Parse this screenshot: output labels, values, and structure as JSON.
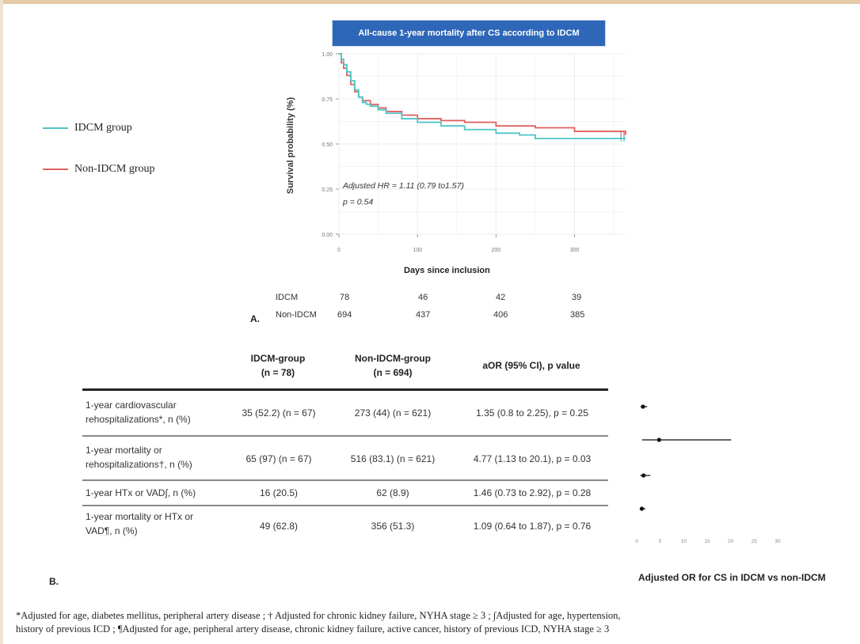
{
  "chart_data": [
    {
      "type": "line",
      "title": "All-cause 1-year mortality after CS according to IDCM",
      "xlabel": "Days since inclusion",
      "ylabel": "Survival probability (%)",
      "xlim": [
        0,
        365
      ],
      "ylim": [
        0,
        1
      ],
      "x_ticks": [
        "0",
        "100",
        "200",
        "300"
      ],
      "y_ticks": [
        "0.00",
        "0.25",
        "0.50",
        "0.75",
        "1.00"
      ],
      "grid": true,
      "annotation": {
        "hr": "Adjusted HR = 1.11 (0.79 to1.57)",
        "p": "p = 0.54"
      },
      "series": [
        {
          "name": "IDCM group",
          "color": "#4fc3c6",
          "x": [
            0,
            3,
            6,
            10,
            15,
            20,
            25,
            30,
            35,
            40,
            50,
            60,
            80,
            100,
            130,
            160,
            200,
            230,
            250,
            300,
            365
          ],
          "y": [
            1.0,
            0.97,
            0.94,
            0.9,
            0.85,
            0.8,
            0.76,
            0.73,
            0.72,
            0.71,
            0.69,
            0.67,
            0.64,
            0.62,
            0.6,
            0.58,
            0.56,
            0.55,
            0.53,
            0.53,
            0.53
          ]
        },
        {
          "name": "Non-IDCM group",
          "color": "#e06060",
          "x": [
            0,
            3,
            6,
            10,
            15,
            20,
            25,
            30,
            40,
            50,
            60,
            80,
            100,
            130,
            160,
            200,
            250,
            300,
            365
          ],
          "y": [
            1.0,
            0.95,
            0.92,
            0.88,
            0.83,
            0.79,
            0.76,
            0.74,
            0.72,
            0.7,
            0.68,
            0.66,
            0.64,
            0.63,
            0.62,
            0.6,
            0.59,
            0.57,
            0.55
          ]
        }
      ],
      "risk_table": {
        "rows": [
          {
            "label": "IDCM",
            "values": [
              "78",
              "46",
              "42",
              "39"
            ]
          },
          {
            "label": "Non-IDCM",
            "values": [
              "694",
              "437",
              "406",
              "385"
            ]
          }
        ]
      },
      "panel_label": "A."
    },
    {
      "type": "table",
      "columns": [
        {
          "line1": "IDCM-group",
          "line2": "(n = 78)"
        },
        {
          "line1": "Non-IDCM-group",
          "line2": "(n = 694)"
        },
        {
          "line1": "aOR (95% CI), p value",
          "line2": ""
        }
      ],
      "rows": [
        {
          "label1": "1-year cardiovascular",
          "label2": "rehospitalizations*, n (%)",
          "idcm": "35 (52.2) (n = 67)",
          "nonidcm": "273 (44) (n = 621)",
          "aor": "1.35 (0.8 to 2.25), p = 0.25"
        },
        {
          "label1": "1-year mortality or",
          "label2": "rehospitalizations†, n (%)",
          "idcm": "65 (97) (n = 67)",
          "nonidcm": "516 (83.1) (n = 621)",
          "aor": "4.77 (1.13 to 20.1), p = 0.03"
        },
        {
          "label1": "1-year HTx or VAD∫, n (%)",
          "label2": "",
          "idcm": "16 (20.5)",
          "nonidcm": "62 (8.9)",
          "aor": "1.46 (0.73 to 2.92), p = 0.28"
        },
        {
          "label1": "1-year mortality or HTx or",
          "label2": "VAD¶, n (%)",
          "idcm": "49 (62.8)",
          "nonidcm": "356 (51.3)",
          "aor": "1.09 (0.64 to 1.87), p = 0.76"
        }
      ]
    },
    {
      "type": "scatter",
      "title": "Adjusted OR for CS in IDCM vs non-IDCM",
      "xlim": [
        0,
        30
      ],
      "x_ticks": [
        "0",
        "5",
        "10",
        "15",
        "20",
        "25",
        "30"
      ],
      "points": [
        {
          "or": 1.35,
          "lo": 0.8,
          "hi": 2.25
        },
        {
          "or": 4.77,
          "lo": 1.13,
          "hi": 20.1
        },
        {
          "or": 1.46,
          "lo": 0.73,
          "hi": 2.92
        },
        {
          "or": 1.09,
          "lo": 0.64,
          "hi": 1.87
        }
      ]
    }
  ],
  "panel_b_label": "B.",
  "footnote": {
    "line1": "*Adjusted for age, diabetes mellitus, peripheral artery disease ;  † Adjusted for chronic kidney failure, NYHA stage ≥ 3 ; ∫Adjusted for age, hypertension,",
    "line2": "history of previous ICD ; ¶Adjusted for age, peripheral artery disease, chronic kidney failure, active cancer, history of previous ICD, NYHA stage ≥ 3"
  }
}
